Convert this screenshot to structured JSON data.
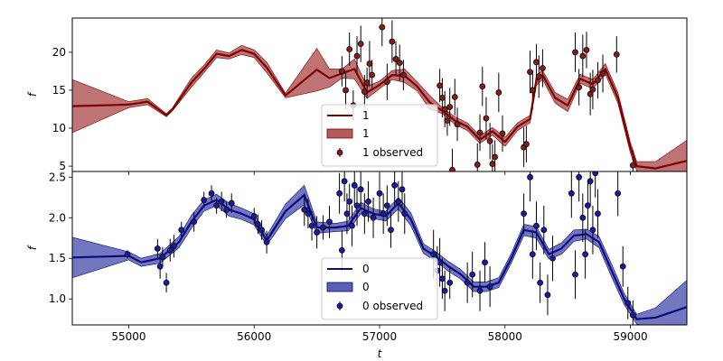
{
  "chart_data": [
    {
      "type": "line",
      "ylabel": "f",
      "xlabel": "",
      "xlim": [
        54550,
        59450
      ],
      "ylim": [
        4.3,
        24.5
      ],
      "xticks": [
        55000,
        56000,
        57000,
        58000,
        59000
      ],
      "yticks": [
        5,
        10,
        15,
        20
      ],
      "x_ticklabels_shown": false,
      "legend": {
        "placement": "lower center",
        "entries": [
          "1",
          "1",
          "1 observed"
        ]
      },
      "colors": {
        "line": "#800000",
        "band": "#b35c5c",
        "points": "#8b1a1a"
      },
      "series": [
        {
          "name": "1",
          "kind": "gp-mean",
          "x": [
            54550,
            55000,
            55150,
            55300,
            55350,
            55500,
            55600,
            55700,
            55800,
            55900,
            56000,
            56100,
            56250,
            56500,
            56600,
            56700,
            56800,
            56900,
            57000,
            57100,
            57200,
            57300,
            57400,
            57500,
            57600,
            57700,
            57800,
            57900,
            58000,
            58100,
            58200,
            58250,
            58300,
            58400,
            58500,
            58600,
            58700,
            58800,
            58900,
            59000,
            59050,
            59200,
            59450
          ],
          "y": [
            12.9,
            13.1,
            13.5,
            11.7,
            12.5,
            16.0,
            17.8,
            19.8,
            19.5,
            20.3,
            19.8,
            18.0,
            14.3,
            17.7,
            16.6,
            17.2,
            17.8,
            14.7,
            15.7,
            17.0,
            16.9,
            15.5,
            13.4,
            12.3,
            11.0,
            10.2,
            8.5,
            9.6,
            8.2,
            10.2,
            11.2,
            16.3,
            17.0,
            14.0,
            13.0,
            16.5,
            15.8,
            17.8,
            14.0,
            7.4,
            5.0,
            4.7,
            5.7
          ],
          "band_halfwidth": [
            3.5,
            0.4,
            0.4,
            0.2,
            0.2,
            0.6,
            0.5,
            0.5,
            0.4,
            0.6,
            0.5,
            0.7,
            0.3,
            2.8,
            1.2,
            0.6,
            1.3,
            0.8,
            0.5,
            0.6,
            0.9,
            0.6,
            0.9,
            0.4,
            0.5,
            0.5,
            0.5,
            0.5,
            0.6,
            0.5,
            0.5,
            0.7,
            0.6,
            0.7,
            0.8,
            0.6,
            0.6,
            0.7,
            0.7,
            0.7,
            0.6,
            0.9,
            2.7
          ]
        },
        {
          "name": "1 observed",
          "kind": "observed",
          "x": [
            56700,
            56730,
            56760,
            56790,
            56820,
            56850,
            56880,
            56900,
            56920,
            56940,
            57020,
            57060,
            57100,
            57130,
            57160,
            57190,
            57480,
            57500,
            57520,
            57540,
            57560,
            57580,
            57600,
            57620,
            57780,
            57800,
            57820,
            57850,
            57880,
            57900,
            57920,
            57950,
            57980,
            58150,
            58170,
            58200,
            58220,
            58250,
            58270,
            58300,
            58560,
            58590,
            58620,
            58650,
            58680,
            58700,
            58740,
            58780,
            58890,
            59020
          ],
          "y": [
            17.5,
            15.0,
            20.4,
            13.0,
            19.5,
            21.1,
            14.8,
            16.0,
            18.5,
            17.0,
            23.3,
            16.1,
            21.4,
            19.1,
            18.6,
            17.0,
            15.6,
            14.0,
            12.5,
            11.0,
            12.8,
            4.5,
            14.1,
            10.5,
            5.2,
            9.4,
            15.5,
            11.3,
            8.3,
            5.3,
            6.2,
            14.7,
            9.3,
            7.5,
            7.9,
            17.4,
            15.0,
            18.7,
            16.8,
            17.9,
            20.0,
            15.4,
            19.5,
            20.3,
            14.5,
            15.1,
            16.3,
            17.2,
            19.7,
            5.1
          ],
          "err": [
            2.0,
            2.5,
            2.2,
            2.0,
            2.6,
            2.4,
            2.2,
            2.0,
            3.0,
            2.0,
            2.5,
            2.4,
            2.8,
            2.3,
            2.4,
            2.0,
            2.2,
            2.6,
            2.4,
            2.0,
            2.5,
            2.8,
            2.4,
            2.2,
            2.8,
            2.4,
            2.6,
            2.8,
            2.4,
            2.6,
            2.2,
            2.6,
            2.4,
            2.6,
            2.4,
            2.8,
            2.6,
            2.4,
            2.8,
            2.5,
            2.6,
            2.4,
            2.8,
            2.4,
            2.8,
            2.6,
            2.4,
            2.5,
            2.4,
            2.0
          ]
        }
      ]
    },
    {
      "type": "line",
      "ylabel": "f",
      "xlabel": "t",
      "xlim": [
        54550,
        59450
      ],
      "ylim": [
        0.68,
        2.57
      ],
      "xticks": [
        55000,
        56000,
        57000,
        58000,
        59000
      ],
      "xticklabels": [
        "55000",
        "56000",
        "57000",
        "58000",
        "59000"
      ],
      "yticks": [
        1.0,
        1.5,
        2.0,
        2.5
      ],
      "yticklabels": [
        "1.0",
        "1.5",
        "2.0",
        "2.5"
      ],
      "legend": {
        "placement": "lower center",
        "entries": [
          "0",
          "0",
          "0 observed"
        ]
      },
      "colors": {
        "line": "#0a0a80",
        "band": "#5b5fb5",
        "points": "#1a1aa8"
      },
      "series": [
        {
          "name": "0",
          "kind": "gp-mean",
          "x": [
            54550,
            55000,
            55100,
            55250,
            55400,
            55500,
            55600,
            55700,
            55800,
            55900,
            56000,
            56100,
            56250,
            56400,
            56500,
            56650,
            56750,
            56850,
            56950,
            57050,
            57150,
            57250,
            57350,
            57450,
            57550,
            57650,
            57750,
            57850,
            57950,
            58050,
            58150,
            58250,
            58350,
            58450,
            58550,
            58650,
            58750,
            58850,
            58950,
            59050,
            59200,
            59450
          ],
          "y": [
            1.51,
            1.53,
            1.45,
            1.5,
            1.7,
            1.95,
            2.15,
            2.22,
            2.1,
            2.05,
            1.98,
            1.72,
            2.08,
            2.28,
            1.88,
            1.88,
            1.9,
            2.12,
            2.05,
            2.02,
            2.18,
            1.98,
            1.62,
            1.52,
            1.4,
            1.3,
            1.15,
            1.15,
            1.2,
            1.5,
            1.85,
            1.82,
            1.55,
            1.62,
            1.78,
            1.8,
            1.7,
            1.35,
            1.0,
            0.75,
            0.77,
            0.9
          ],
          "band_halfwidth": [
            0.25,
            0.05,
            0.05,
            0.06,
            0.07,
            0.08,
            0.07,
            0.07,
            0.08,
            0.07,
            0.07,
            0.06,
            0.09,
            0.12,
            0.07,
            0.05,
            0.06,
            0.07,
            0.06,
            0.06,
            0.07,
            0.08,
            0.06,
            0.06,
            0.06,
            0.06,
            0.06,
            0.06,
            0.06,
            0.06,
            0.07,
            0.07,
            0.06,
            0.07,
            0.07,
            0.06,
            0.07,
            0.08,
            0.07,
            0.06,
            0.12,
            0.33
          ]
        },
        {
          "name": "0 observed",
          "kind": "observed",
          "x": [
            54990,
            55230,
            55250,
            55270,
            55300,
            55330,
            55360,
            55420,
            55520,
            55600,
            55660,
            55700,
            55740,
            55780,
            55820,
            56000,
            56030,
            56060,
            56100,
            56400,
            56430,
            56460,
            56500,
            56550,
            56600,
            56680,
            56700,
            56720,
            56740,
            56760,
            56780,
            56800,
            56820,
            56850,
            56880,
            56910,
            56950,
            57000,
            57030,
            57060,
            57090,
            57120,
            57150,
            57180,
            57200,
            57430,
            57460,
            57480,
            57500,
            57520,
            57560,
            57700,
            57740,
            57800,
            57840,
            57880,
            58150,
            58200,
            58220,
            58250,
            58280,
            58310,
            58340,
            58380,
            58530,
            58560,
            58590,
            58620,
            58640,
            58660,
            58680,
            58700,
            58720,
            58740,
            58900,
            58940,
            58980,
            59020
          ],
          "y": [
            1.55,
            1.62,
            1.4,
            1.52,
            1.2,
            1.6,
            1.65,
            1.85,
            1.95,
            2.22,
            2.3,
            2.15,
            2.2,
            2.1,
            2.18,
            2.02,
            1.92,
            1.85,
            1.7,
            2.1,
            2.05,
            1.9,
            1.82,
            1.88,
            1.95,
            2.3,
            1.6,
            2.45,
            2.05,
            2.2,
            1.9,
            2.4,
            2.15,
            2.35,
            2.05,
            2.2,
            2.0,
            2.3,
            2.05,
            2.15,
            1.85,
            2.4,
            2.2,
            2.35,
            2.05,
            1.55,
            1.35,
            1.45,
            1.25,
            1.1,
            1.2,
            1.2,
            1.3,
            1.1,
            1.45,
            1.15,
            2.05,
            2.5,
            1.55,
            1.9,
            1.2,
            1.85,
            1.05,
            1.5,
            2.3,
            1.3,
            2.5,
            2.0,
            1.55,
            2.15,
            2.45,
            1.85,
            2.55,
            2.05,
            2.3,
            1.4,
            0.95,
            0.8
          ],
          "err": [
            0.05,
            0.12,
            0.15,
            0.12,
            0.12,
            0.14,
            0.14,
            0.1,
            0.12,
            0.1,
            0.1,
            0.1,
            0.12,
            0.1,
            0.12,
            0.1,
            0.12,
            0.12,
            0.14,
            0.2,
            0.18,
            0.18,
            0.2,
            0.15,
            0.2,
            0.25,
            0.25,
            0.25,
            0.25,
            0.22,
            0.25,
            0.25,
            0.25,
            0.25,
            0.25,
            0.25,
            0.25,
            0.25,
            0.25,
            0.25,
            0.22,
            0.25,
            0.25,
            0.25,
            0.25,
            0.3,
            0.3,
            0.3,
            0.25,
            0.25,
            0.2,
            0.25,
            0.28,
            0.25,
            0.25,
            0.25,
            0.25,
            0.3,
            0.3,
            0.3,
            0.25,
            0.3,
            0.25,
            0.28,
            0.3,
            0.3,
            0.3,
            0.3,
            0.3,
            0.3,
            0.3,
            0.3,
            0.3,
            0.3,
            0.28,
            0.25,
            0.2,
            0.18
          ]
        }
      ]
    }
  ]
}
